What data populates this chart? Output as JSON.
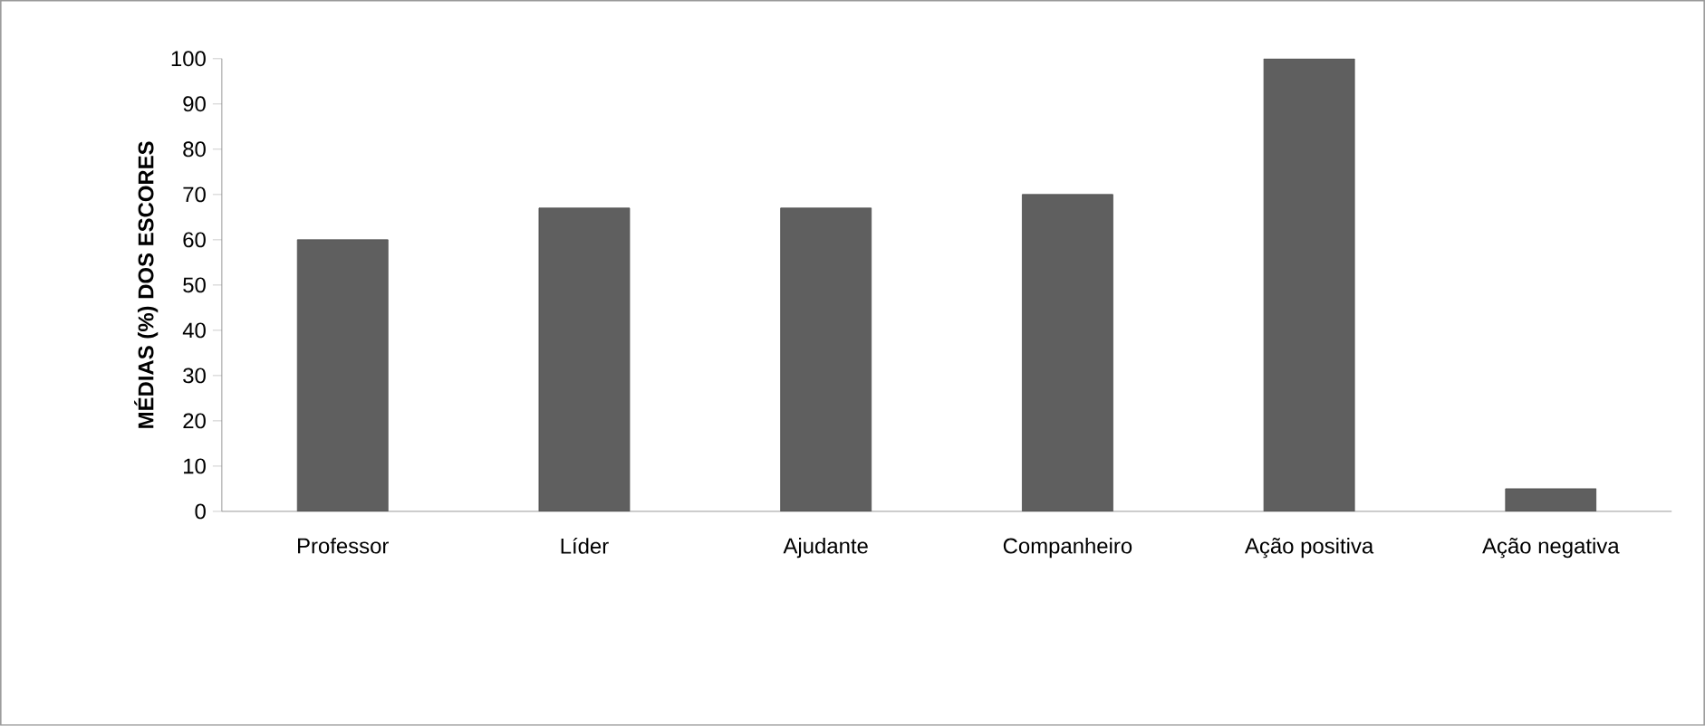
{
  "chart_data": {
    "type": "bar",
    "ylabel": "MÉDIAS (%) DOS ESCORES",
    "categories": [
      "Professor",
      "Líder",
      "Ajudante",
      "Companheiro",
      "Ação positiva",
      "Ação negativa"
    ],
    "values": [
      60,
      67,
      67,
      70,
      100,
      5
    ],
    "color": "#5f5f5f",
    "ylim": [
      0,
      100
    ],
    "yticks": [
      0,
      10,
      20,
      30,
      40,
      50,
      60,
      70,
      80,
      90,
      100
    ],
    "grid": false,
    "legend": false
  }
}
